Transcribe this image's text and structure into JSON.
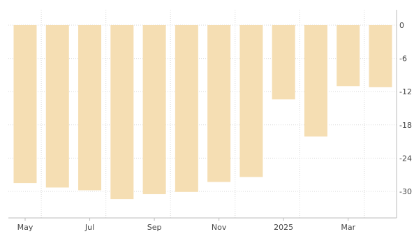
{
  "chart_data": {
    "type": "bar",
    "title": "",
    "xlabel": "",
    "ylabel": "",
    "ylim": [
      -33,
      0
    ],
    "y_ticks": [
      0,
      -6,
      -12,
      -18,
      -24,
      -30
    ],
    "y_tick_labels": [
      "0",
      "-6",
      "-12",
      "-18",
      "-24",
      "-30"
    ],
    "y_axis_side": "right",
    "x_tick_labels": [
      "May",
      "Jul",
      "Sep",
      "Nov",
      "2025",
      "Mar"
    ],
    "categories": [
      "2024-05",
      "2024-06",
      "2024-07",
      "2024-08",
      "2024-09",
      "2024-10",
      "2024-11",
      "2024-12",
      "2025-01",
      "2025-02",
      "2025-03",
      "2025-04"
    ],
    "values": [
      -28.5,
      -29.3,
      -29.8,
      -31.4,
      -30.5,
      -30.1,
      -28.3,
      -27.4,
      -13.4,
      -20.1,
      -11.0,
      -11.2
    ],
    "grid": "dotted vertical and horizontal",
    "legend": "none",
    "colors": {
      "bar": "#f5deb3",
      "grid": "#d9d9d9",
      "axis": "#bbbbbb",
      "tick_text": "#444444"
    }
  }
}
